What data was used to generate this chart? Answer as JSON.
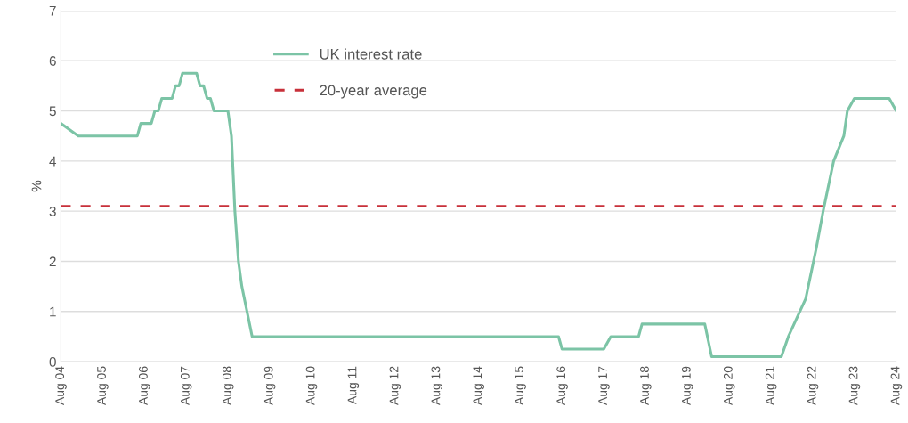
{
  "chart_data": {
    "type": "line",
    "ylabel": "%",
    "x": [
      "2004-08",
      "2005-01",
      "2006-06",
      "2006-07",
      "2006-10",
      "2006-11",
      "2006-12",
      "2007-01",
      "2007-04",
      "2007-05",
      "2007-06",
      "2007-07",
      "2007-11",
      "2007-12",
      "2008-01",
      "2008-02",
      "2008-03",
      "2008-04",
      "2008-08",
      "2008-09",
      "2008-10",
      "2008-11",
      "2008-12",
      "2009-03",
      "2016-07",
      "2016-08",
      "2017-08",
      "2017-10",
      "2018-06",
      "2018-07",
      "2020-01",
      "2020-03",
      "2021-11",
      "2022-01",
      "2022-06",
      "2022-09",
      "2022-11",
      "2023-02",
      "2023-05",
      "2023-06",
      "2023-08",
      "2024-06",
      "2024-08"
    ],
    "series": [
      {
        "name": "UK interest rate",
        "color": "#7cc4a6",
        "values": [
          4.75,
          4.5,
          4.5,
          4.75,
          4.75,
          5.0,
          5.0,
          5.25,
          5.25,
          5.5,
          5.5,
          5.75,
          5.75,
          5.5,
          5.5,
          5.25,
          5.25,
          5.0,
          5.0,
          4.5,
          3.0,
          2.0,
          1.5,
          0.5,
          0.5,
          0.25,
          0.25,
          0.5,
          0.5,
          0.75,
          0.75,
          0.1,
          0.1,
          0.5,
          1.25,
          2.25,
          3.0,
          4.0,
          4.5,
          5.0,
          5.25,
          5.25,
          5.0
        ]
      }
    ],
    "ref_lines": [
      {
        "axis": "y",
        "value": 3.1,
        "label": "20-year average",
        "color": "#c8303a",
        "line_style": "dashed"
      }
    ],
    "xlim": [
      "2004-08",
      "2024-08"
    ],
    "xticks": [
      {
        "value": "2004-08",
        "label": "Aug 04"
      },
      {
        "value": "2005-08",
        "label": "Aug 05"
      },
      {
        "value": "2006-08",
        "label": "Aug 06"
      },
      {
        "value": "2007-08",
        "label": "Aug 07"
      },
      {
        "value": "2008-08",
        "label": "Aug 08"
      },
      {
        "value": "2009-08",
        "label": "Aug 09"
      },
      {
        "value": "2010-08",
        "label": "Aug 10"
      },
      {
        "value": "2011-08",
        "label": "Aug 11"
      },
      {
        "value": "2012-08",
        "label": "Aug 12"
      },
      {
        "value": "2013-08",
        "label": "Aug 13"
      },
      {
        "value": "2014-08",
        "label": "Aug 14"
      },
      {
        "value": "2015-08",
        "label": "Aug 15"
      },
      {
        "value": "2016-08",
        "label": "Aug 16"
      },
      {
        "value": "2017-08",
        "label": "Aug 17"
      },
      {
        "value": "2018-08",
        "label": "Aug 18"
      },
      {
        "value": "2019-08",
        "label": "Aug 19"
      },
      {
        "value": "2020-08",
        "label": "Aug 20"
      },
      {
        "value": "2021-08",
        "label": "Aug 21"
      },
      {
        "value": "2022-08",
        "label": "Aug 22"
      },
      {
        "value": "2023-08",
        "label": "Aug 23"
      },
      {
        "value": "2024-08",
        "label": "Aug 24"
      }
    ],
    "ylim": [
      0,
      7
    ],
    "yticks": [
      0,
      1,
      2,
      3,
      4,
      5,
      6,
      7
    ],
    "grid": "y",
    "legend": "top left",
    "marker": "none",
    "line_style": "solid"
  }
}
